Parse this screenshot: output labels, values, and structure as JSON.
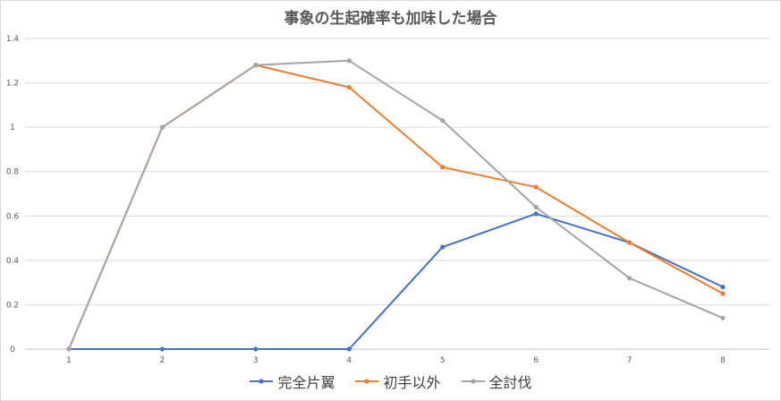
{
  "chart_data": {
    "type": "line",
    "title": "事象の生起確率も加味した場合",
    "xlabel": "",
    "ylabel": "",
    "x": [
      1,
      2,
      3,
      4,
      5,
      6,
      7,
      8
    ],
    "ylim": [
      0,
      1.4
    ],
    "yticks": [
      "0",
      "0.2",
      "0.4",
      "0.6",
      "0.8",
      "1",
      "1.2",
      "1.4"
    ],
    "xticks": [
      "1",
      "2",
      "3",
      "4",
      "5",
      "6",
      "7",
      "8"
    ],
    "grid": true,
    "legend": "bottom",
    "series": [
      {
        "name": "完全片翼",
        "color": "#4472c4",
        "values": [
          0,
          0,
          0,
          0,
          0.46,
          0.61,
          0.48,
          0.28
        ]
      },
      {
        "name": "初手以外",
        "color": "#ed7d31",
        "values": [
          0,
          1.0,
          1.28,
          1.18,
          0.82,
          0.73,
          0.48,
          0.25
        ]
      },
      {
        "name": "全討伐",
        "color": "#a5a5a5",
        "values": [
          0,
          1.0,
          1.28,
          1.3,
          1.03,
          0.64,
          0.32,
          0.14
        ]
      }
    ]
  }
}
